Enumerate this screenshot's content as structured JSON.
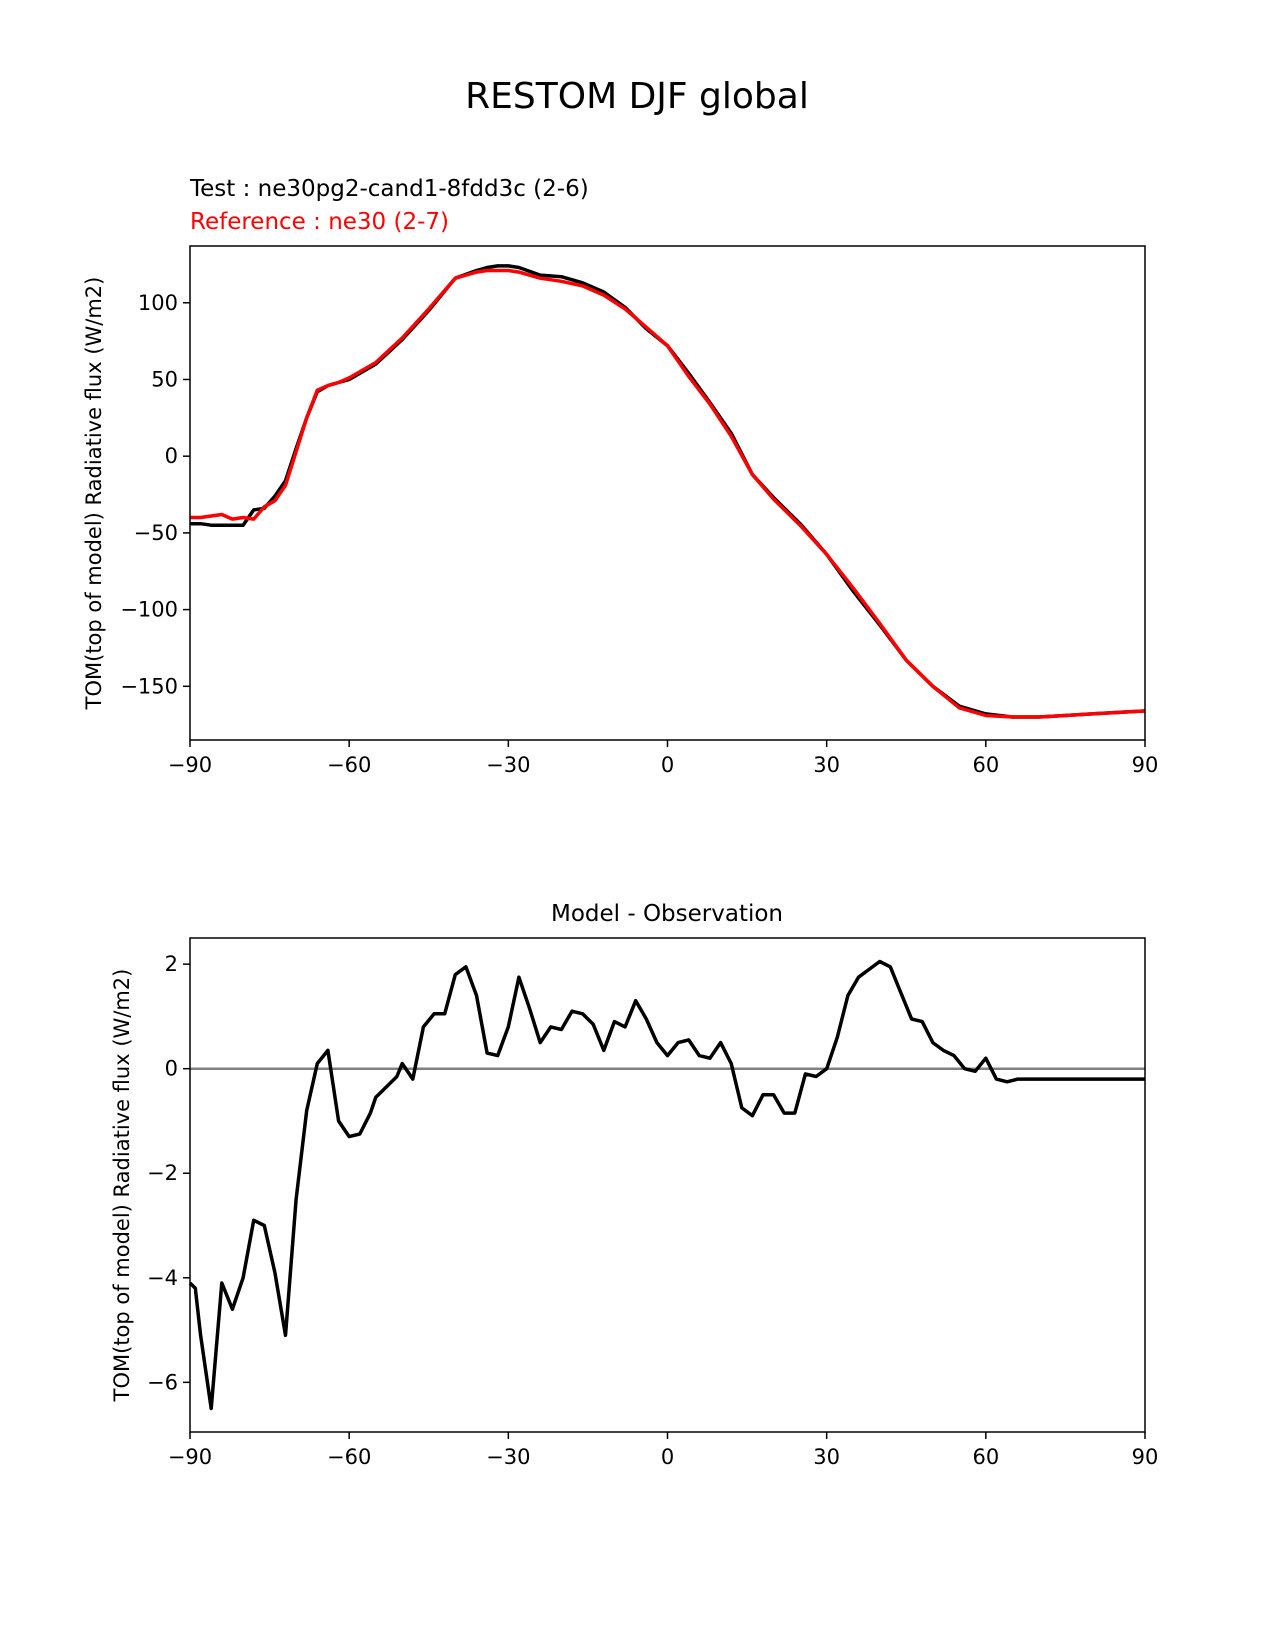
{
  "figure_title": "RESTOM DJF global",
  "colors": {
    "test": "#000000",
    "reference": "#ff0000",
    "zero_line": "#808080"
  },
  "chart_data": [
    {
      "type": "line",
      "test_label": "Test : ne30pg2-cand1-8fdd3c (2-6)",
      "reference_label": "Reference : ne30 (2-7)",
      "ylabel": "TOM(top of model) Radiative flux (W/m2)",
      "xlim": [
        -90,
        90
      ],
      "ylim": [
        -185,
        137
      ],
      "xticks": [
        -90,
        -60,
        -30,
        0,
        30,
        60,
        90
      ],
      "xtick_labels": [
        "−90",
        "−60",
        "−30",
        "0",
        "30",
        "60",
        "90"
      ],
      "yticks": [
        100,
        50,
        0,
        -50,
        -100,
        -150
      ],
      "ytick_labels": [
        "100",
        "50",
        "0",
        "−50",
        "−100",
        "−150"
      ],
      "series": [
        {
          "name": "Test",
          "x": [
            -90,
            -88,
            -86,
            -84,
            -82,
            -80,
            -78,
            -76,
            -74,
            -72,
            -70,
            -68,
            -66,
            -64,
            -62,
            -60,
            -55,
            -50,
            -45,
            -40,
            -36,
            -34,
            -32,
            -30,
            -28,
            -24,
            -20,
            -16,
            -12,
            -8,
            -4,
            0,
            0,
            4,
            8,
            12,
            16,
            20,
            25,
            30,
            35,
            40,
            45,
            50,
            55,
            60,
            65,
            70,
            75,
            80,
            85,
            90
          ],
          "y": [
            -44,
            -44,
            -45,
            -45,
            -45,
            -45,
            -35,
            -34,
            -26,
            -16,
            5,
            25,
            42,
            46,
            48,
            50,
            60,
            76,
            95,
            116,
            121,
            123,
            124,
            124,
            123,
            118,
            117,
            113,
            107,
            97,
            83,
            72,
            72,
            54,
            35,
            15,
            -12,
            -27,
            -44,
            -64,
            -88,
            -110,
            -133,
            -150,
            -163,
            -168,
            -170,
            -170,
            -169,
            -168,
            -167,
            -166
          ]
        },
        {
          "name": "Reference",
          "x": [
            -90,
            -88,
            -86,
            -84,
            -82,
            -80,
            -78,
            -76,
            -74,
            -72,
            -70,
            -68,
            -66,
            -64,
            -62,
            -60,
            -55,
            -50,
            -45,
            -40,
            -36,
            -34,
            -32,
            -30,
            -28,
            -24,
            -20,
            -16,
            -12,
            -8,
            -4,
            0,
            4,
            8,
            12,
            16,
            20,
            25,
            30,
            35,
            40,
            45,
            50,
            55,
            60,
            65,
            70,
            75,
            80,
            85,
            90
          ],
          "y": [
            -40,
            -40,
            -39,
            -38,
            -41,
            -40,
            -41,
            -33,
            -29,
            -19,
            3,
            25,
            43,
            46,
            48,
            51,
            61,
            77,
            96,
            116,
            120,
            121,
            121,
            121,
            120,
            116,
            114,
            111,
            105,
            96,
            84,
            72,
            52,
            34,
            13,
            -12,
            -28,
            -45,
            -64,
            -86,
            -109,
            -133,
            -150,
            -164,
            -169,
            -170,
            -170,
            -169,
            -168,
            -167,
            -166
          ]
        }
      ]
    },
    {
      "type": "line",
      "title": "Model - Observation",
      "ylabel": "TOM(top of model) Radiative flux (W/m2)",
      "xlim": [
        -90,
        90
      ],
      "ylim": [
        -6.95,
        2.5
      ],
      "xticks": [
        -90,
        -60,
        -30,
        0,
        30,
        60,
        90
      ],
      "xtick_labels": [
        "−90",
        "−60",
        "−30",
        "0",
        "30",
        "60",
        "90"
      ],
      "yticks": [
        2,
        0,
        -2,
        -4,
        -6
      ],
      "ytick_labels": [
        "2",
        "0",
        "−2",
        "−4",
        "−6"
      ],
      "zero_line": 0,
      "series": [
        {
          "name": "Model - Observation",
          "x": [
            -90,
            -89,
            -88,
            -86,
            -84,
            -82,
            -80,
            -78,
            -76,
            -74,
            -72,
            -70,
            -68,
            -66,
            -64,
            -62,
            -60,
            -58,
            -56,
            -55,
            -53,
            -51,
            -50,
            -48,
            -46,
            -44,
            -42,
            -40,
            -38,
            -36,
            -34,
            -32,
            -30,
            -28,
            -26,
            -24,
            -22,
            -20,
            -18,
            -16,
            -14,
            -12,
            -10,
            -8,
            -6,
            -4,
            -2,
            0,
            2,
            4,
            6,
            8,
            10,
            12,
            14,
            16,
            18,
            20,
            22,
            24,
            26,
            28,
            30,
            32,
            34,
            36,
            38,
            40,
            42,
            44,
            46,
            48,
            50,
            52,
            54,
            56,
            58,
            60,
            62,
            64,
            66,
            68,
            70,
            72,
            74,
            76,
            78,
            80,
            82,
            84,
            86,
            88,
            90
          ],
          "y": [
            -4.1,
            -4.2,
            -5.1,
            -6.5,
            -4.1,
            -4.6,
            -4.0,
            -2.9,
            -3.0,
            -3.9,
            -5.1,
            -2.5,
            -0.8,
            0.1,
            0.35,
            -1.0,
            -1.3,
            -1.25,
            -0.85,
            -0.55,
            -0.35,
            -0.15,
            0.1,
            -0.2,
            0.8,
            1.05,
            1.05,
            1.8,
            1.95,
            1.4,
            0.3,
            0.25,
            0.8,
            1.75,
            1.15,
            0.5,
            0.8,
            0.75,
            1.1,
            1.05,
            0.85,
            0.35,
            0.9,
            0.8,
            1.3,
            0.95,
            0.5,
            0.25,
            0.5,
            0.55,
            0.25,
            0.2,
            0.5,
            0.1,
            -0.75,
            -0.9,
            -0.5,
            -0.5,
            -0.85,
            -0.85,
            -0.1,
            -0.15,
            0.0,
            0.6,
            1.4,
            1.75,
            1.9,
            2.05,
            1.95,
            1.45,
            0.95,
            0.9,
            0.5,
            0.35,
            0.25,
            0.0,
            -0.05,
            0.2,
            -0.2,
            -0.25,
            -0.2,
            -0.2,
            -0.2,
            -0.2,
            -0.2,
            -0.2,
            -0.2,
            -0.2,
            -0.2,
            -0.2,
            -0.2,
            -0.2,
            -0.2
          ]
        }
      ]
    }
  ]
}
